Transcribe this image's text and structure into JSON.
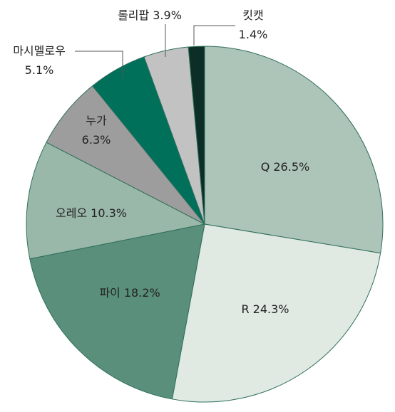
{
  "chart_data": {
    "type": "pie",
    "categories": [
      "Q",
      "R",
      "파이",
      "오레오",
      "누가",
      "마시멜로우",
      "롤리팝",
      "킷캣"
    ],
    "values": [
      26.5,
      24.3,
      18.2,
      10.3,
      6.3,
      5.1,
      3.9,
      1.4
    ],
    "value_labels": [
      "26.5%",
      "24.3%",
      "18.2%",
      "10.3%",
      "6.3%",
      "5.1%",
      "3.9%",
      "1.4%"
    ],
    "colors": [
      "#adc4b8",
      "#e0e9e2",
      "#5a8f7b",
      "#9ab8a9",
      "#9d9d9d",
      "#00705a",
      "#c2c2c2",
      "#0d2e26"
    ]
  }
}
